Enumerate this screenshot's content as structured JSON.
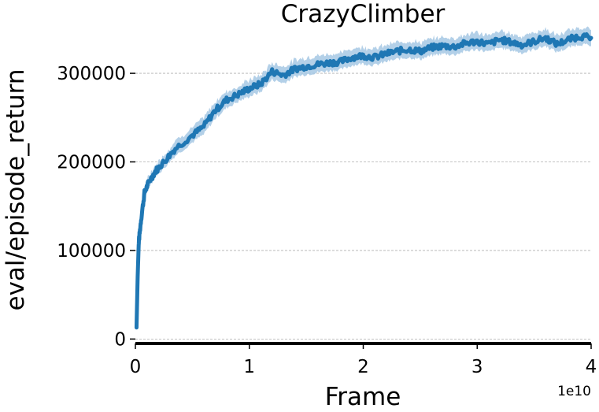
{
  "chart_data": {
    "type": "line",
    "title": "CrazyClimber",
    "xlabel": "Frame",
    "ylabel": "eval/episode_return",
    "x_offset_label": "1e10",
    "xlim": [
      0,
      4
    ],
    "ylim": [
      -5000,
      365000
    ],
    "x_ticks": [
      0,
      1,
      2,
      3,
      4
    ],
    "x_tick_labels": [
      "0",
      "1",
      "2",
      "3",
      "4"
    ],
    "y_ticks": [
      0,
      100000,
      200000,
      300000
    ],
    "y_tick_labels": [
      "0",
      "100000",
      "200000",
      "300000"
    ],
    "grid": "horizontal dashed",
    "line_color": "#1f77b4",
    "band_color": "#a6c8e4",
    "series": [
      {
        "x": [
          0.01,
          0.02,
          0.03,
          0.05,
          0.08,
          0.12,
          0.18,
          0.25,
          0.35,
          0.5,
          0.6,
          0.7,
          0.8,
          0.9,
          1.0,
          1.1,
          1.2,
          1.3,
          1.4,
          1.5,
          1.6,
          1.7,
          1.8,
          1.9,
          2.0,
          2.1,
          2.2,
          2.3,
          2.4,
          2.5,
          2.6,
          2.7,
          2.8,
          2.9,
          3.0,
          3.1,
          3.2,
          3.3,
          3.4,
          3.5,
          3.6,
          3.7,
          3.8,
          3.9,
          4.0
        ],
        "y": [
          13000,
          70000,
          110000,
          135000,
          165000,
          178000,
          190000,
          200000,
          215000,
          230000,
          240000,
          258000,
          270000,
          276000,
          283000,
          288000,
          302000,
          298000,
          305000,
          308000,
          310000,
          312000,
          313000,
          318000,
          320000,
          318000,
          322000,
          325000,
          327000,
          325000,
          329000,
          331000,
          330000,
          334000,
          336000,
          333000,
          338000,
          335000,
          332000,
          336000,
          340000,
          333000,
          338000,
          342000,
          340000
        ],
        "lower": [
          10000,
          65000,
          104000,
          129000,
          159000,
          172000,
          184000,
          193000,
          207000,
          222000,
          231000,
          249000,
          261000,
          268000,
          274000,
          279000,
          293000,
          289000,
          296000,
          299000,
          301000,
          303000,
          304000,
          309000,
          311000,
          309000,
          313000,
          316000,
          318000,
          316000,
          320000,
          322000,
          321000,
          325000,
          327000,
          324000,
          329000,
          326000,
          323000,
          327000,
          331000,
          324000,
          329000,
          333000,
          331000
        ],
        "upper": [
          16000,
          75000,
          116000,
          141000,
          171000,
          184000,
          196000,
          207000,
          223000,
          238000,
          249000,
          267000,
          279000,
          284000,
          292000,
          297000,
          311000,
          307000,
          314000,
          317000,
          319000,
          321000,
          322000,
          327000,
          329000,
          327000,
          331000,
          334000,
          336000,
          334000,
          338000,
          340000,
          339000,
          343000,
          345000,
          342000,
          347000,
          344000,
          341000,
          345000,
          349000,
          342000,
          347000,
          351000,
          349000
        ]
      }
    ]
  }
}
